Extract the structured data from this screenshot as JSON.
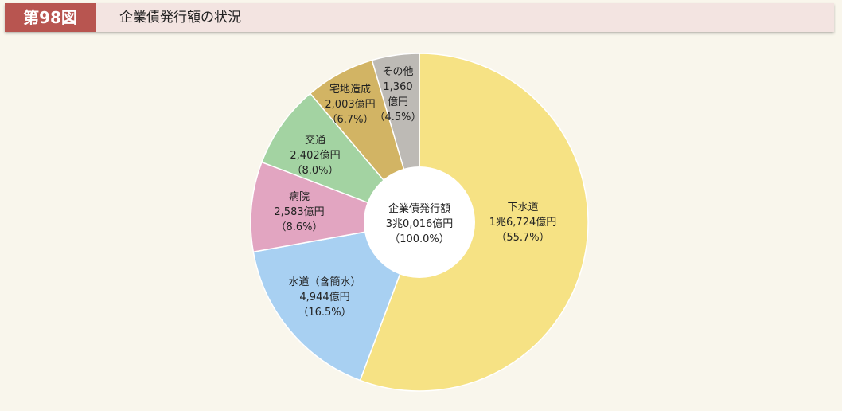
{
  "header": {
    "figure_number": "第98図",
    "title": "企業債発行額の状況"
  },
  "colors": {
    "header_accent": "#b85550",
    "header_bg": "#f3e4e1",
    "background": "#f9f6ec"
  },
  "chart_data": {
    "type": "pie",
    "donut_center": {
      "line1": "企業債発行額",
      "line2": "3兆0,016億円",
      "line3": "（100.0%）"
    },
    "total": 30016,
    "unit": "億円",
    "slices": [
      {
        "name": "下水道",
        "value": 16724,
        "value_text": "1兆6,724億円",
        "percent": 55.7,
        "percent_text": "（55.7%）",
        "color": "#f6e284"
      },
      {
        "name": "水道（含簡水）",
        "value": 4944,
        "value_text": "4,944億円",
        "percent": 16.5,
        "percent_text": "（16.5%）",
        "color": "#a8d0f2"
      },
      {
        "name": "病院",
        "value": 2583,
        "value_text": "2,583億円",
        "percent": 8.6,
        "percent_text": "（8.6%）",
        "color": "#e2a5c1"
      },
      {
        "name": "交通",
        "value": 2402,
        "value_text": "2,402億円",
        "percent": 8.0,
        "percent_text": "（8.0%）",
        "color": "#a3d3a2"
      },
      {
        "name": "宅地造成",
        "value": 2003,
        "value_text": "2,003億円",
        "percent": 6.7,
        "percent_text": "（6.7%）",
        "color": "#d2b464"
      },
      {
        "name": "その他",
        "value": 1360,
        "value_text": "1,360",
        "value_text2": "億円",
        "percent": 4.5,
        "percent_text": "（4.5%）",
        "color": "#bdbab5"
      }
    ]
  }
}
